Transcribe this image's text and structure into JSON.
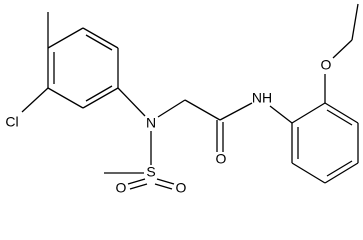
{
  "atoms": [
    {
      "label": "Cl"
    },
    {
      "label": "N"
    },
    {
      "label": "S"
    },
    {
      "label": "O"
    },
    {
      "label": "O"
    },
    {
      "label": "O"
    },
    {
      "label": "NH"
    },
    {
      "label": "O"
    }
  ]
}
